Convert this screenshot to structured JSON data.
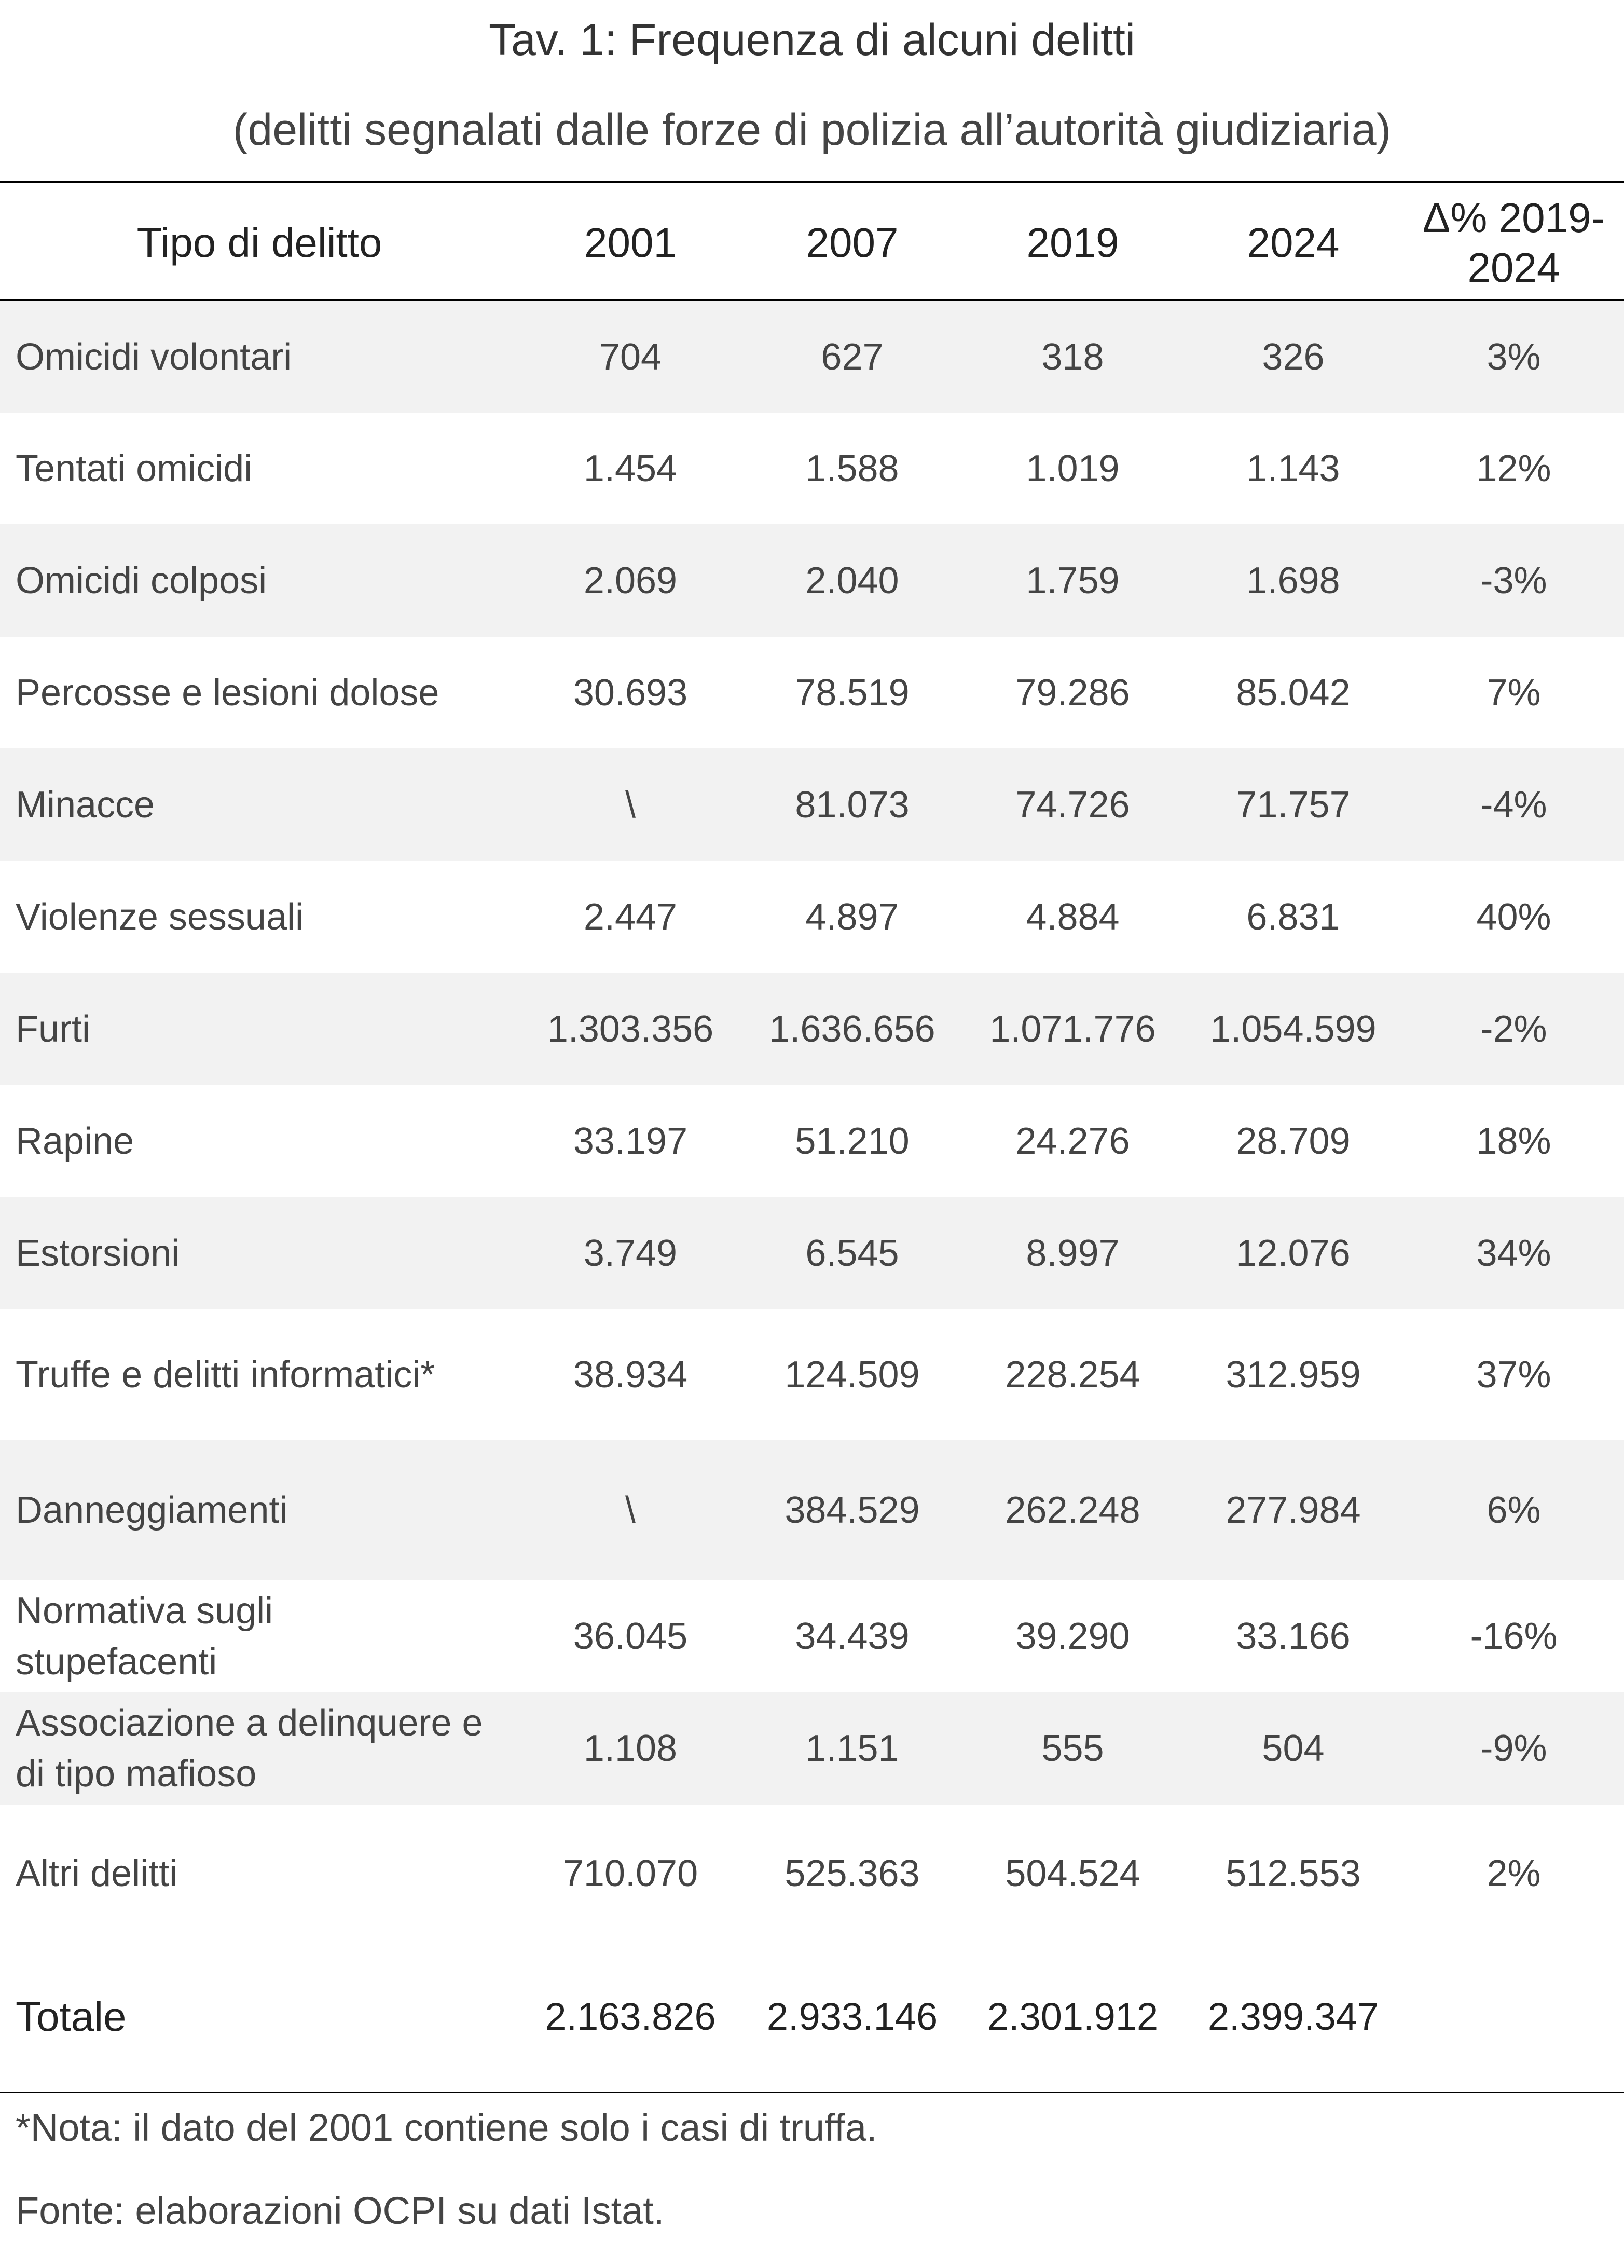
{
  "title": "Tav. 1: Frequenza di alcuni delitti",
  "subtitle": "(delitti segnalati dalle forze di polizia all’autorità giudiziaria)",
  "table": {
    "headers": [
      "Tipo di delitto",
      "2001",
      "2007",
      "2019",
      "2024",
      "Δ% 2019-\n2024"
    ],
    "rows": [
      {
        "label": "Omicidi volontari",
        "v2001": "704",
        "v2007": "627",
        "v2019": "318",
        "v2024": "326",
        "delta": "3%"
      },
      {
        "label": "Tentati omicidi",
        "v2001": "1.454",
        "v2007": "1.588",
        "v2019": "1.019",
        "v2024": "1.143",
        "delta": "12%"
      },
      {
        "label": "Omicidi colposi",
        "v2001": "2.069",
        "v2007": "2.040",
        "v2019": "1.759",
        "v2024": "1.698",
        "delta": "-3%"
      },
      {
        "label": "Percosse e lesioni dolose",
        "v2001": "30.693",
        "v2007": "78.519",
        "v2019": "79.286",
        "v2024": "85.042",
        "delta": "7%"
      },
      {
        "label": "Minacce",
        "v2001": "\\",
        "v2007": "81.073",
        "v2019": "74.726",
        "v2024": "71.757",
        "delta": "-4%"
      },
      {
        "label": "Violenze sessuali",
        "v2001": "2.447",
        "v2007": "4.897",
        "v2019": "4.884",
        "v2024": "6.831",
        "delta": "40%"
      },
      {
        "label": "Furti",
        "v2001": "1.303.356",
        "v2007": "1.636.656",
        "v2019": "1.071.776",
        "v2024": "1.054.599",
        "delta": "-2%"
      },
      {
        "label": "Rapine",
        "v2001": "33.197",
        "v2007": "51.210",
        "v2019": "24.276",
        "v2024": "28.709",
        "delta": "18%"
      },
      {
        "label": "Estorsioni",
        "v2001": "3.749",
        "v2007": "6.545",
        "v2019": "8.997",
        "v2024": "12.076",
        "delta": "34%"
      },
      {
        "label": "Truffe e delitti informatici*",
        "v2001": "38.934",
        "v2007": "124.509",
        "v2019": "228.254",
        "v2024": "312.959",
        "delta": "37%"
      },
      {
        "label": "Danneggiamenti",
        "v2001": "\\",
        "v2007": "384.529",
        "v2019": "262.248",
        "v2024": "277.984",
        "delta": "6%"
      },
      {
        "label": "Normativa sugli\nstupefacenti",
        "v2001": "36.045",
        "v2007": "34.439",
        "v2019": "39.290",
        "v2024": "33.166",
        "delta": "-16%"
      },
      {
        "label": "Associazione a delinquere e\ndi tipo mafioso",
        "v2001": "1.108",
        "v2007": "1.151",
        "v2019": "555",
        "v2024": "504",
        "delta": "-9%"
      },
      {
        "label": "Altri delitti",
        "v2001": "710.070",
        "v2007": "525.363",
        "v2019": "504.524",
        "v2024": "512.553",
        "delta": "2%"
      }
    ],
    "total": {
      "label": "Totale",
      "v2001": "2.163.826",
      "v2007": "2.933.146",
      "v2019": "2.301.912",
      "v2024": "2.399.347",
      "delta": ""
    }
  },
  "note": "*Nota: il dato del 2001 contiene solo i casi di truffa.",
  "source": "Fonte: elaborazioni OCPI su dati Istat."
}
